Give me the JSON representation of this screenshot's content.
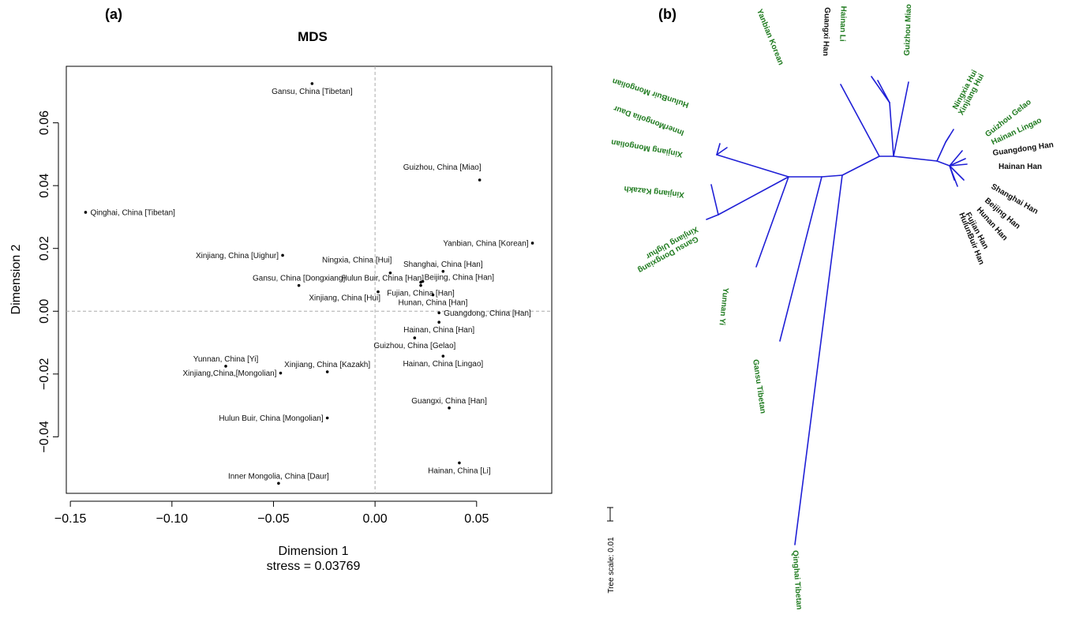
{
  "panel_a_label": "(a)",
  "panel_b_label": "(b)",
  "chart_data": [
    {
      "type": "scatter",
      "title": "MDS",
      "xlabel": "Dimension 1",
      "ylabel": "Dimension 2",
      "subtitle": "stress = 0.03769",
      "xlim": [
        -0.152,
        0.087
      ],
      "ylim": [
        -0.058,
        0.078
      ],
      "xticks": [
        -0.15,
        -0.1,
        -0.05,
        0.0,
        0.05
      ],
      "xtick_labels": [
        "−0.15",
        "−0.10",
        "−0.05",
        "0.00",
        "0.05"
      ],
      "yticks": [
        -0.04,
        -0.02,
        0.0,
        0.02,
        0.04,
        0.06
      ],
      "ytick_labels": [
        "−0.04",
        "−0.02",
        "0.00",
        "0.02",
        "0.04",
        "0.06"
      ],
      "grid": false,
      "reference_lines": {
        "x": 0,
        "y": 0,
        "style": "dashed"
      },
      "points": [
        {
          "label": "Gansu, China [Tibetan]",
          "x": -0.031,
          "y": 0.0725,
          "label_anchor": "below"
        },
        {
          "label": "Qinghai, China [Tibetan]",
          "x": -0.1425,
          "y": 0.0315,
          "label_anchor": "right"
        },
        {
          "label": "Guizhou, China [Miao]",
          "x": 0.0515,
          "y": 0.0418,
          "label_anchor": "above-left"
        },
        {
          "label": "Yanbian, China [Korean]",
          "x": 0.0775,
          "y": 0.0217,
          "label_anchor": "left"
        },
        {
          "label": "Xinjiang, China [Uighur]",
          "x": -0.0455,
          "y": 0.0178,
          "label_anchor": "left"
        },
        {
          "label": "Ningxia, China [Hui]",
          "x": 0.0075,
          "y": 0.0122,
          "label_anchor": "above-left"
        },
        {
          "label": "Shanghai, China [Han]",
          "x": 0.0335,
          "y": 0.0127,
          "label_anchor": "above"
        },
        {
          "label": "Beijing, China [Han]",
          "x": 0.0235,
          "y": 0.0095,
          "label_anchor": "right-above"
        },
        {
          "label": "Hulun Buir, China [Han]",
          "x": 0.0225,
          "y": 0.0092,
          "label_anchor": "left-above"
        },
        {
          "label": "Gansu, China [Dongxiang]",
          "x": -0.0375,
          "y": 0.0082,
          "label_anchor": "above"
        },
        {
          "label": "Fujian, China [Han]",
          "x": 0.0225,
          "y": 0.0082,
          "label_anchor": "below"
        },
        {
          "label": "Xinjiang, China [Hui]",
          "x": 0.0015,
          "y": 0.0062,
          "label_anchor": "below-left"
        },
        {
          "label": "Hunan, China [Han]",
          "x": 0.0285,
          "y": 0.0052,
          "label_anchor": "below"
        },
        {
          "label": "Guangdong, China [Han]",
          "x": 0.0315,
          "y": -0.0005,
          "label_anchor": "right"
        },
        {
          "label": "Hainan, China [Han]",
          "x": 0.0315,
          "y": -0.0035,
          "label_anchor": "below"
        },
        {
          "label": "Guizhou, China [Gelao]",
          "x": 0.0195,
          "y": -0.0085,
          "label_anchor": "below"
        },
        {
          "label": "Hainan, China [Lingao]",
          "x": 0.0335,
          "y": -0.0143,
          "label_anchor": "below"
        },
        {
          "label": "Yunnan, China [Yi]",
          "x": -0.0735,
          "y": -0.0175,
          "label_anchor": "above"
        },
        {
          "label": "Xinjiang,China,[Mongolian]",
          "x": -0.0465,
          "y": -0.0197,
          "label_anchor": "left"
        },
        {
          "label": "Xinjiang, China [Kazakh]",
          "x": -0.0235,
          "y": -0.0193,
          "label_anchor": "above"
        },
        {
          "label": "Guangxi, China [Han]",
          "x": 0.0365,
          "y": -0.0308,
          "label_anchor": "above"
        },
        {
          "label": "Hulun Buir, China [Mongolian]",
          "x": -0.0235,
          "y": -0.034,
          "label_anchor": "left"
        },
        {
          "label": "Hainan, China [Li]",
          "x": 0.0415,
          "y": -0.0483,
          "label_anchor": "below"
        },
        {
          "label": "Inner Mongolia, China [Daur]",
          "x": -0.0475,
          "y": -0.0548,
          "label_anchor": "above"
        }
      ]
    },
    {
      "type": "tree",
      "scale_label": "Tree scale: 0.01",
      "branch_color": "#1f1fd6",
      "colors": {
        "han": "#111111",
        "minority": "#1e7a1e"
      },
      "leaves": [
        {
          "label": "Yanbian Korean",
          "group": "minority"
        },
        {
          "label": "Guangxi Han",
          "group": "han"
        },
        {
          "label": "Hainan Li",
          "group": "minority"
        },
        {
          "label": "Guizhou Miao",
          "group": "minority"
        },
        {
          "label": "Ningxia Hui",
          "group": "minority"
        },
        {
          "label": "Xinjiang Hui",
          "group": "minority"
        },
        {
          "label": "Guizhou Gelao",
          "group": "minority"
        },
        {
          "label": "Hainan Lingao",
          "group": "minority"
        },
        {
          "label": "Guangdong Han",
          "group": "han"
        },
        {
          "label": "Hainan Han",
          "group": "han"
        },
        {
          "label": "Shanghai Han",
          "group": "han"
        },
        {
          "label": "Beijing Han",
          "group": "han"
        },
        {
          "label": "Hunan Han",
          "group": "han"
        },
        {
          "label": "Fujian Han",
          "group": "han"
        },
        {
          "label": "HulunBuir Han",
          "group": "han"
        },
        {
          "label": "HulunBuir Mongolian",
          "group": "minority"
        },
        {
          "label": "InnerMongolia Daur",
          "group": "minority"
        },
        {
          "label": "Xinjiang Mongolian",
          "group": "minority"
        },
        {
          "label": "Xinjiang Kazakh",
          "group": "minority"
        },
        {
          "label": "Xinjiang Uighur",
          "group": "minority"
        },
        {
          "label": "Gansu Dongxiang",
          "group": "minority"
        },
        {
          "label": "Yunnan Yi",
          "group": "minority"
        },
        {
          "label": "Gansu Tibetan",
          "group": "minority"
        },
        {
          "label": "Qinghai Tibetan",
          "group": "minority"
        }
      ]
    }
  ]
}
